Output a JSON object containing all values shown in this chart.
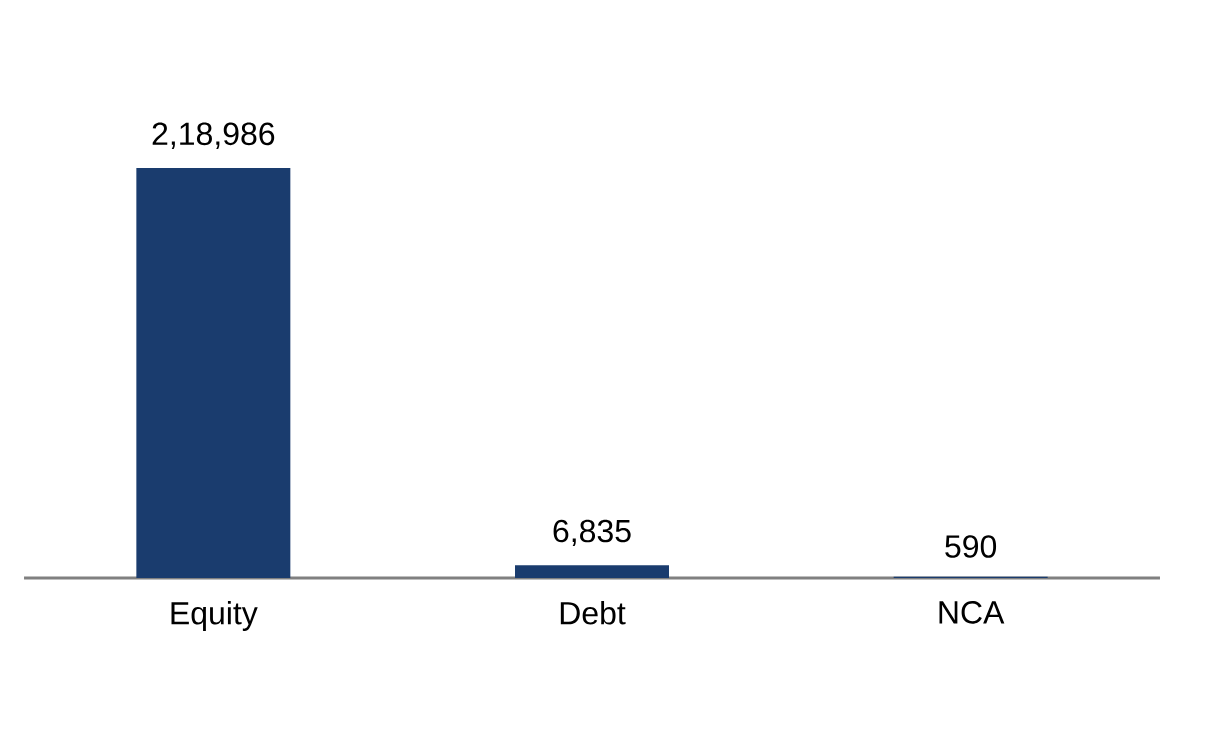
{
  "chart_data": {
    "type": "bar",
    "categories": [
      "Equity",
      "Debt",
      "NCA"
    ],
    "values": [
      218986,
      6835,
      590
    ],
    "value_labels": [
      "2,18,986",
      "6,835",
      "590"
    ],
    "color": "#1a3c6e"
  }
}
